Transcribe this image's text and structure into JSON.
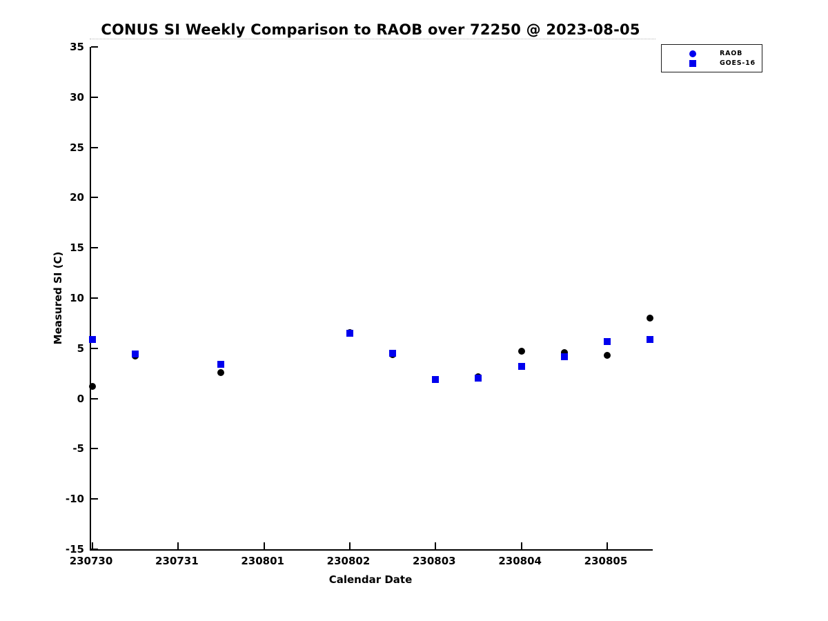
{
  "chart_data": {
    "type": "scatter",
    "title": "CONUS SI Weekly Comparison to RAOB over 72250 @ 2023-08-05",
    "xlabel": "Calendar Date",
    "ylabel": "Measured SI (C)",
    "ylim": [
      -15,
      35
    ],
    "yticks": [
      35,
      30,
      25,
      20,
      15,
      10,
      5,
      0,
      -5,
      -10,
      -15
    ],
    "xtick_labels": [
      "230730",
      "230731",
      "230801",
      "230802",
      "230803",
      "230804",
      "230805"
    ],
    "x_unit": "days from 230730 tick; ticks 1 day apart, +0.5 = 12Z observation",
    "x": [
      0,
      0.5,
      1.5,
      3,
      3.5,
      4,
      4.5,
      5,
      5.5,
      6,
      6.5
    ],
    "series": [
      {
        "name": "RAOB",
        "marker": "circle",
        "plot_marker_color": "#000000",
        "legend_marker_color": "#0000ee",
        "values": [
          1.2,
          4.2,
          2.6,
          6.6,
          4.4,
          1.9,
          2.2,
          4.7,
          4.6,
          4.3,
          8.0
        ]
      },
      {
        "name": "GOES-16",
        "marker": "square",
        "plot_marker_color": "#0000ee",
        "legend_marker_color": "#0000ee",
        "values": [
          5.9,
          4.45,
          3.4,
          6.5,
          4.5,
          1.9,
          2.0,
          3.2,
          4.15,
          5.7,
          5.85
        ]
      }
    ],
    "legend": {
      "position": "upper-right",
      "entries": [
        "RAOB",
        "GOES-16"
      ]
    },
    "grid": false,
    "background": "#ffffff",
    "axis_color": "#000000"
  }
}
